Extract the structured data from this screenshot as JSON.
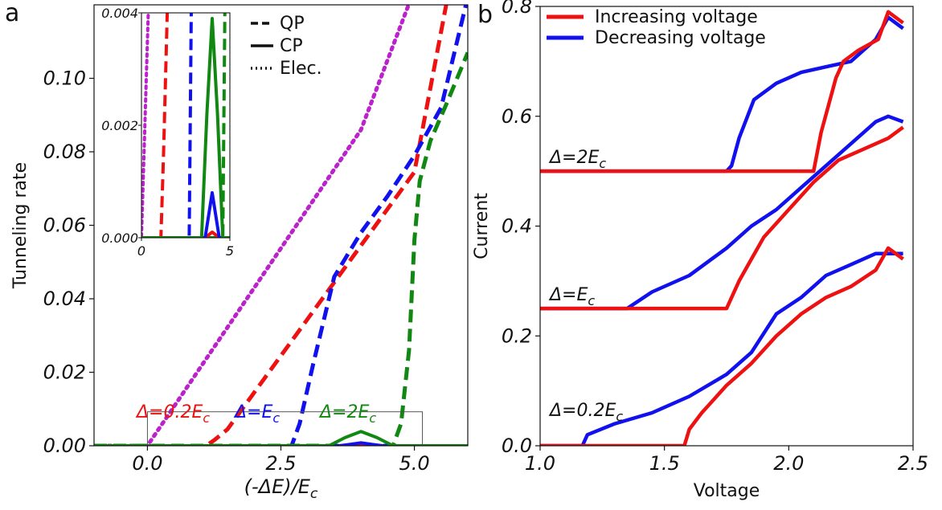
{
  "chart_data": [
    {
      "panel": "a",
      "type": "line",
      "xlabel": "(-ΔE)/E",
      "xlabel_sub": "c",
      "ylabel": "Tunneling rate",
      "xlim": [
        -1.0,
        6.0
      ],
      "ylim": [
        0.0,
        0.12
      ],
      "xticks": [
        "0.0",
        "2.5",
        "5.0"
      ],
      "yticks": [
        "0.00",
        "0.02",
        "0.04",
        "0.06",
        "0.08",
        "0.10"
      ],
      "legend": [
        {
          "style": "dashed",
          "label": "QP"
        },
        {
          "style": "solid",
          "label": "CP"
        },
        {
          "style": "dotted",
          "label": "Elec."
        }
      ],
      "annotations": [
        {
          "text": "Δ=0.2E",
          "sub": "c",
          "color": "#ee1111"
        },
        {
          "text": "Δ=E",
          "sub": "c",
          "color": "#1111ee"
        },
        {
          "text": "Δ=2E",
          "sub": "c",
          "color": "#118811"
        }
      ],
      "series": [
        {
          "kind": "Elec.",
          "color": "#bb22cc",
          "style": "dotted",
          "x": [
            -1.0,
            0.0,
            0.5,
            1.0,
            2.0,
            3.0,
            4.0,
            4.9
          ],
          "y": [
            0.0,
            0.0,
            0.0107,
            0.0215,
            0.043,
            0.0645,
            0.086,
            0.1203
          ]
        },
        {
          "kind": "QP",
          "color": "#ee1111",
          "style": "dashed",
          "x": [
            -1.0,
            1.1,
            1.25,
            1.5,
            2.0,
            3.0,
            4.0,
            5.0,
            5.6
          ],
          "y": [
            0.0,
            0.0,
            0.0015,
            0.0045,
            0.0145,
            0.0345,
            0.0545,
            0.0745,
            0.1203
          ]
        },
        {
          "kind": "QP",
          "color": "#1111ee",
          "style": "dashed",
          "x": [
            -1.0,
            2.7,
            2.85,
            3.1,
            3.5,
            4.0,
            4.5,
            5.0,
            5.5,
            5.97
          ],
          "y": [
            0.0,
            0.0,
            0.006,
            0.022,
            0.046,
            0.058,
            0.068,
            0.079,
            0.092,
            0.1203
          ]
        },
        {
          "kind": "QP",
          "color": "#118811",
          "style": "dashed",
          "x": [
            -1.0,
            4.6,
            4.75,
            4.9,
            5.0,
            5.1,
            5.3,
            5.6,
            6.0
          ],
          "y": [
            0.0,
            0.0,
            0.006,
            0.026,
            0.056,
            0.072,
            0.083,
            0.093,
            0.107
          ]
        },
        {
          "kind": "CP",
          "color": "#ee1111",
          "style": "solid",
          "x": [
            -1.0,
            3.6,
            4.0,
            4.4,
            6.0
          ],
          "y": [
            0.0,
            0.0,
            0.0001,
            0.0,
            0.0
          ]
        },
        {
          "kind": "CP",
          "color": "#1111ee",
          "style": "solid",
          "x": [
            -1.0,
            3.6,
            3.8,
            4.0,
            4.2,
            4.4,
            6.0
          ],
          "y": [
            0.0,
            0.0,
            0.0004,
            0.0008,
            0.0004,
            0.0,
            0.0
          ]
        },
        {
          "kind": "CP",
          "color": "#118811",
          "style": "solid",
          "x": [
            -1.0,
            3.4,
            3.7,
            4.0,
            4.3,
            4.6,
            6.0
          ],
          "y": [
            0.0,
            0.0,
            0.0022,
            0.0039,
            0.0022,
            0.0,
            0.0
          ]
        }
      ],
      "inset": {
        "xlim": [
          0,
          5
        ],
        "ylim": [
          0.0,
          0.004
        ],
        "xticks": [
          "0",
          "5"
        ],
        "yticks": [
          "0.000",
          "0.002",
          "0.004"
        ],
        "zoom_box": {
          "x": [
            0.0,
            5.15
          ],
          "y": [
            0.0,
            0.004
          ]
        }
      }
    },
    {
      "panel": "b",
      "type": "line",
      "xlabel": "Voltage",
      "ylabel": "Current",
      "xlim": [
        1.0,
        2.5
      ],
      "ylim": [
        0.0,
        0.8
      ],
      "xticks": [
        "1.0",
        "1.5",
        "2.0",
        "2.5"
      ],
      "yticks": [
        "0.0",
        "0.2",
        "0.4",
        "0.6",
        "0.8"
      ],
      "legend": [
        {
          "color": "#ee1111",
          "label": "Increasing voltage"
        },
        {
          "color": "#1111ee",
          "label": "Decreasing voltage"
        }
      ],
      "annotations": [
        {
          "text": "Δ=2E",
          "sub": "c"
        },
        {
          "text": "Δ=E",
          "sub": "c"
        },
        {
          "text": "Δ=0.2E",
          "sub": "c"
        }
      ],
      "series": [
        {
          "label": "Decreasing voltage",
          "color": "#1111ee",
          "x": [
            1.0,
            1.75,
            1.77,
            1.8,
            1.86,
            1.95,
            2.05,
            2.15,
            2.25,
            2.35,
            2.4,
            2.46
          ],
          "y": [
            0.5,
            0.5,
            0.51,
            0.56,
            0.63,
            0.66,
            0.68,
            0.69,
            0.7,
            0.74,
            0.78,
            0.76
          ]
        },
        {
          "label": "Increasing voltage",
          "color": "#ee1111",
          "x": [
            1.0,
            2.1,
            2.13,
            2.16,
            2.19,
            2.22,
            2.28,
            2.36,
            2.4,
            2.46
          ],
          "y": [
            0.5,
            0.5,
            0.57,
            0.62,
            0.67,
            0.7,
            0.72,
            0.74,
            0.79,
            0.77
          ]
        },
        {
          "label": "Decreasing voltage",
          "color": "#1111ee",
          "x": [
            1.0,
            1.35,
            1.45,
            1.6,
            1.75,
            1.85,
            1.95,
            2.05,
            2.15,
            2.25,
            2.35,
            2.4,
            2.46
          ],
          "y": [
            0.25,
            0.25,
            0.28,
            0.31,
            0.36,
            0.4,
            0.43,
            0.47,
            0.51,
            0.55,
            0.59,
            0.6,
            0.59
          ]
        },
        {
          "label": "Increasing voltage",
          "color": "#ee1111",
          "x": [
            1.0,
            1.75,
            1.8,
            1.85,
            1.9,
            2.0,
            2.1,
            2.2,
            2.3,
            2.4,
            2.46
          ],
          "y": [
            0.25,
            0.25,
            0.3,
            0.34,
            0.38,
            0.43,
            0.48,
            0.52,
            0.54,
            0.56,
            0.58
          ]
        },
        {
          "label": "Decreasing voltage",
          "color": "#1111ee",
          "x": [
            1.0,
            1.17,
            1.19,
            1.3,
            1.45,
            1.6,
            1.75,
            1.85,
            1.95,
            2.05,
            2.15,
            2.25,
            2.35,
            2.46
          ],
          "y": [
            0.0,
            0.0,
            0.02,
            0.04,
            0.06,
            0.09,
            0.13,
            0.17,
            0.24,
            0.27,
            0.31,
            0.33,
            0.35,
            0.35
          ]
        },
        {
          "label": "Increasing voltage",
          "color": "#ee1111",
          "x": [
            1.0,
            1.58,
            1.6,
            1.65,
            1.75,
            1.85,
            1.95,
            2.05,
            2.15,
            2.25,
            2.35,
            2.4,
            2.46
          ],
          "y": [
            0.0,
            0.0,
            0.03,
            0.06,
            0.11,
            0.15,
            0.2,
            0.24,
            0.27,
            0.29,
            0.32,
            0.36,
            0.34
          ]
        }
      ]
    }
  ]
}
